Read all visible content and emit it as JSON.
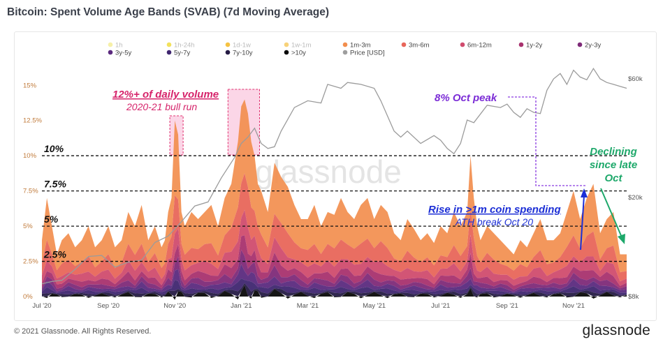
{
  "header": {
    "title": "Bitcoin: Spent Volume Age Bands (SVAB) (7d Moving Average)"
  },
  "footer": {
    "copyright": "© 2021 Glassnode. All Rights Reserved.",
    "brand": "glassnode"
  },
  "watermark": "glassnode",
  "chart_data": {
    "type": "area",
    "stacked": true,
    "title": "Bitcoin: Spent Volume Age Bands (SVAB) (7d Moving Average)",
    "legend_position": "top",
    "legend": [
      {
        "name": "1h",
        "color": "#f6f0a8",
        "active": false
      },
      {
        "name": "1h-24h",
        "color": "#f2e15c",
        "active": false
      },
      {
        "name": "1d-1w",
        "color": "#f5c242",
        "active": false
      },
      {
        "name": "1w-1m",
        "color": "#f7d27a",
        "active": false
      },
      {
        "name": "1m-3m",
        "color": "#f28e4e",
        "active": true
      },
      {
        "name": "3m-6m",
        "color": "#e8665a",
        "active": true
      },
      {
        "name": "6m-12m",
        "color": "#d04c6e",
        "active": true
      },
      {
        "name": "1y-2y",
        "color": "#a8326e",
        "active": true
      },
      {
        "name": "2y-3y",
        "color": "#7e2a78",
        "active": true
      },
      {
        "name": "3y-5y",
        "color": "#5b2a7e",
        "active": true
      },
      {
        "name": "5y-7y",
        "color": "#3f2670",
        "active": true
      },
      {
        "name": "7y-10y",
        "color": "#251b44",
        "active": true
      },
      {
        "name": ">10y",
        "color": "#0a0a0a",
        "active": true
      },
      {
        "name": "Price [USD]",
        "color": "#9e9e9e",
        "active": true
      }
    ],
    "x_ticks": [
      "Jul '20",
      "Sep '20",
      "Nov '20",
      "Jan '21",
      "Mar '21",
      "May '21",
      "Jul '21",
      "Sep '21",
      "Nov '21"
    ],
    "x_tick_months": [
      0,
      2,
      4,
      6,
      8,
      10,
      12,
      14,
      16
    ],
    "x_range_months": [
      0,
      17.6
    ],
    "y_left": {
      "ticks": [
        "0%",
        "2.5%",
        "5%",
        "7.5%",
        "10%",
        "12.5%",
        "15%"
      ],
      "range": [
        0,
        16.5
      ]
    },
    "y_right": {
      "ticks": [
        "$8k",
        "$20k",
        "$60k"
      ],
      "tick_values": [
        8000,
        20000,
        60000
      ],
      "range": [
        8000,
        60000
      ],
      "scale": "log"
    },
    "total_active_percent": {
      "x": [
        0,
        0.15,
        0.3,
        0.45,
        0.6,
        0.8,
        1.0,
        1.2,
        1.4,
        1.6,
        1.8,
        2.0,
        2.2,
        2.4,
        2.6,
        2.8,
        3.0,
        3.2,
        3.4,
        3.6,
        3.7,
        3.8,
        3.9,
        4.0,
        4.1,
        4.2,
        4.3,
        4.5,
        4.7,
        4.9,
        5.1,
        5.3,
        5.5,
        5.7,
        5.9,
        6.0,
        6.1,
        6.2,
        6.3,
        6.4,
        6.5,
        6.6,
        6.8,
        7.0,
        7.2,
        7.4,
        7.6,
        7.8,
        8.0,
        8.2,
        8.4,
        8.6,
        8.8,
        9.0,
        9.2,
        9.4,
        9.6,
        9.8,
        10.0,
        10.2,
        10.4,
        10.6,
        10.8,
        11.0,
        11.2,
        11.4,
        11.6,
        11.8,
        12.0,
        12.2,
        12.4,
        12.6,
        12.8,
        12.9,
        13.0,
        13.1,
        13.2,
        13.4,
        13.6,
        13.8,
        14.0,
        14.2,
        14.4,
        14.6,
        14.8,
        15.0,
        15.2,
        15.4,
        15.6,
        15.8,
        16.0,
        16.2,
        16.4,
        16.6,
        16.8,
        17.0,
        17.2,
        17.4,
        17.6
      ],
      "y": [
        4,
        7,
        5,
        3,
        4,
        4.5,
        3.5,
        4,
        5,
        3.5,
        4,
        5,
        3.5,
        4,
        6,
        5,
        6.5,
        4,
        5,
        3.5,
        4,
        6,
        7,
        12.5,
        11.5,
        6,
        5,
        6,
        5.5,
        6,
        6.5,
        5,
        7,
        8,
        11,
        13.5,
        14,
        13,
        11,
        10,
        8,
        7.5,
        6,
        9.5,
        8.5,
        7.8,
        6.5,
        5.5,
        5.5,
        6.5,
        5,
        6,
        5.8,
        7,
        6,
        5.5,
        6.5,
        7,
        5.5,
        6.5,
        6,
        4.5,
        4,
        5.5,
        4.8,
        4,
        4.5,
        3.8,
        5,
        4.5,
        6,
        5,
        6,
        10,
        7,
        5,
        4,
        5,
        4.5,
        4,
        3.5,
        3,
        4,
        3.5,
        4.5,
        5.5,
        4,
        4,
        4.5,
        6,
        7.5,
        5.5,
        7,
        8,
        4.5,
        5.5,
        6,
        3,
        3
      ]
    },
    "price_usd": {
      "x": [
        0,
        0.3,
        0.6,
        1.0,
        1.4,
        1.8,
        2.2,
        2.6,
        3.0,
        3.4,
        3.8,
        4.2,
        4.6,
        5.0,
        5.4,
        5.8,
        6.0,
        6.2,
        6.4,
        6.6,
        6.8,
        7.0,
        7.2,
        7.6,
        8.0,
        8.4,
        8.6,
        9.0,
        9.2,
        9.6,
        10.0,
        10.2,
        10.6,
        10.8,
        11.0,
        11.4,
        11.8,
        12.0,
        12.2,
        12.4,
        12.6,
        12.8,
        13.0,
        13.4,
        13.8,
        14.0,
        14.2,
        14.4,
        14.6,
        14.8,
        15.0,
        15.2,
        15.4,
        15.6,
        15.8,
        16.0,
        16.2,
        16.4,
        16.6,
        16.8,
        17.0,
        17.2,
        17.4,
        17.6
      ],
      "y": [
        9000,
        9200,
        9300,
        10300,
        11600,
        11700,
        10500,
        11000,
        11200,
        13200,
        14000,
        16000,
        18500,
        19200,
        24000,
        29000,
        33000,
        35000,
        38000,
        33000,
        31500,
        32000,
        37000,
        46000,
        49000,
        48000,
        57000,
        55000,
        58000,
        57000,
        55000,
        49000,
        37000,
        35000,
        37000,
        33000,
        35500,
        34000,
        31500,
        30000,
        33000,
        41000,
        40000,
        47000,
        46000,
        47500,
        44000,
        42000,
        45500,
        44000,
        43500,
        54000,
        60000,
        63000,
        57000,
        65000,
        61000,
        59500,
        66000,
        60000,
        58000,
        57000,
        56000,
        55000
      ]
    },
    "band_shares": [
      0.4,
      0.2,
      0.12,
      0.08,
      0.06,
      0.05,
      0.04,
      0.03,
      0.02
    ],
    "reference_lines": [
      {
        "label": "2.5%",
        "value": 2.5
      },
      {
        "label": "5%",
        "value": 5
      },
      {
        "label": "7.5%",
        "value": 7.5
      },
      {
        "label": "10%",
        "value": 10
      }
    ],
    "highlight_ranges": [
      {
        "x0": 3.85,
        "x1": 4.25
      },
      {
        "x0": 5.6,
        "x1": 6.55
      }
    ],
    "annotations": [
      {
        "text": "12%+ of daily volume",
        "style": "bold-underline",
        "color": "#d6246b"
      },
      {
        "text": "2020-21 bull run",
        "style": "italic",
        "color": "#d6246b"
      },
      {
        "text": "8% Oct peak",
        "style": "bold",
        "color": "#7b2cd6"
      },
      {
        "text": "Rise in >1m coin spending",
        "style": "bold-underline",
        "color": "#1c2fd6"
      },
      {
        "text": "ATH break Oct 20",
        "style": "italic",
        "color": "#1c2fd6"
      },
      {
        "text": "Declining",
        "style": "bold",
        "color": "#1da86a"
      },
      {
        "text": "since late",
        "style": "bold",
        "color": "#1da86a"
      },
      {
        "text": "Oct",
        "style": "bold",
        "color": "#1da86a"
      }
    ]
  }
}
